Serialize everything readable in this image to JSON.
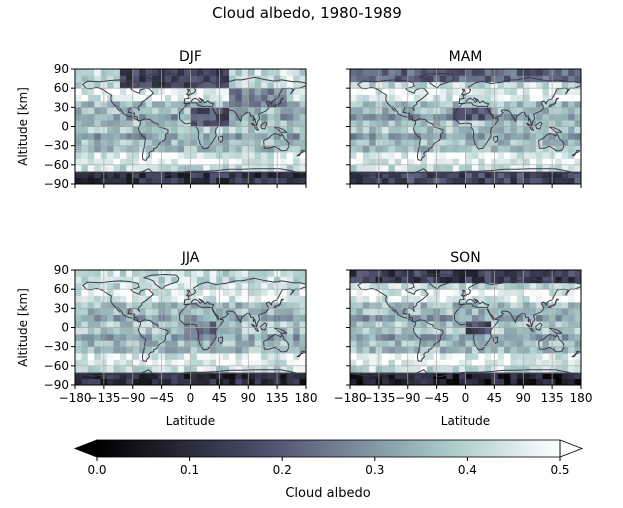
{
  "figure": {
    "title": "Cloud albedo, 1980-1989",
    "ylabel": "Altitude [km]",
    "xlabel": "Latitude",
    "colorbar_label": "Cloud albedo"
  },
  "colors": {
    "ocean_low": "#cfe0df",
    "cloud_high": "#f4f8f8",
    "dark_cloud": "#3a3a55",
    "coastline": "#3a3a48",
    "grid": "#a9a9a9"
  },
  "chart_data": [
    {
      "type": "heatmap",
      "title": "DJF",
      "xlabel": "",
      "ylabel": "Altitude [km]",
      "xlim": [
        -180,
        180
      ],
      "ylim": [
        -90,
        90
      ],
      "xticks": [
        -180,
        -135,
        -90,
        -45,
        0,
        45,
        90,
        135,
        180
      ],
      "yticks": [
        90,
        60,
        30,
        0,
        -30,
        -60,
        -90
      ],
      "show_xticklabels": false,
      "show_yticklabels": true,
      "grid": true,
      "colormap": "bone",
      "vmin": 0.0,
      "vmax": 0.5,
      "dark_regions": [
        {
          "lon": [
            0,
            60
          ],
          "lat": [
            5,
            30
          ],
          "level": 0.18
        },
        {
          "lon": [
            -110,
            60
          ],
          "lat": [
            60,
            88
          ],
          "level": 0.15
        },
        {
          "lon": [
            -180,
            180
          ],
          "lat": [
            -90,
            -70
          ],
          "level": 0.12
        },
        {
          "lon": [
            60,
            150
          ],
          "lat": [
            30,
            60
          ],
          "level": 0.26
        }
      ]
    },
    {
      "type": "heatmap",
      "title": "MAM",
      "xlabel": "",
      "ylabel": "",
      "xlim": [
        -180,
        180
      ],
      "ylim": [
        -90,
        90
      ],
      "xticks": [
        -180,
        -135,
        -90,
        -45,
        0,
        45,
        90,
        135,
        180
      ],
      "yticks": [
        90,
        60,
        30,
        0,
        -30,
        -60,
        -90
      ],
      "show_xticklabels": false,
      "show_yticklabels": false,
      "grid": true,
      "colormap": "bone",
      "vmin": 0.0,
      "vmax": 0.5,
      "dark_regions": [
        {
          "lon": [
            -20,
            40
          ],
          "lat": [
            8,
            28
          ],
          "level": 0.2
        },
        {
          "lon": [
            -180,
            180
          ],
          "lat": [
            70,
            90
          ],
          "level": 0.22
        },
        {
          "lon": [
            -180,
            180
          ],
          "lat": [
            -90,
            -72
          ],
          "level": 0.16
        }
      ]
    },
    {
      "type": "heatmap",
      "title": "JJA",
      "xlabel": "Latitude",
      "ylabel": "Altitude [km]",
      "xlim": [
        -180,
        180
      ],
      "ylim": [
        -90,
        90
      ],
      "xticks": [
        -180,
        -135,
        -90,
        -45,
        0,
        45,
        90,
        135,
        180
      ],
      "yticks": [
        90,
        60,
        30,
        0,
        -30,
        -60,
        -90
      ],
      "show_xticklabels": true,
      "show_yticklabels": true,
      "grid": true,
      "colormap": "bone",
      "vmin": 0.0,
      "vmax": 0.5,
      "dark_regions": [
        {
          "lon": [
            -10,
            40
          ],
          "lat": [
            -15,
            5
          ],
          "level": 0.24
        },
        {
          "lon": [
            -180,
            180
          ],
          "lat": [
            -90,
            -72
          ],
          "level": 0.1
        }
      ]
    },
    {
      "type": "heatmap",
      "title": "SON",
      "xlabel": "Latitude",
      "ylabel": "",
      "xlim": [
        -180,
        180
      ],
      "ylim": [
        -90,
        90
      ],
      "xticks": [
        -180,
        -135,
        -90,
        -45,
        0,
        45,
        90,
        135,
        180
      ],
      "yticks": [
        90,
        60,
        30,
        0,
        -30,
        -60,
        -90
      ],
      "show_xticklabels": true,
      "show_yticklabels": false,
      "grid": true,
      "colormap": "bone",
      "vmin": 0.0,
      "vmax": 0.5,
      "dark_regions": [
        {
          "lon": [
            0,
            40
          ],
          "lat": [
            -10,
            10
          ],
          "level": 0.18
        },
        {
          "lon": [
            -180,
            180
          ],
          "lat": [
            68,
            90
          ],
          "level": 0.14
        },
        {
          "lon": [
            -180,
            180
          ],
          "lat": [
            -90,
            -70
          ],
          "level": 0.08
        }
      ]
    }
  ],
  "colorbar": {
    "min": 0.0,
    "max": 0.5,
    "ticks": [
      0.0,
      0.1,
      0.2,
      0.3,
      0.4,
      0.5
    ],
    "tick_labels": [
      "0.0",
      "0.1",
      "0.2",
      "0.3",
      "0.4",
      "0.5"
    ],
    "extend": "both"
  }
}
